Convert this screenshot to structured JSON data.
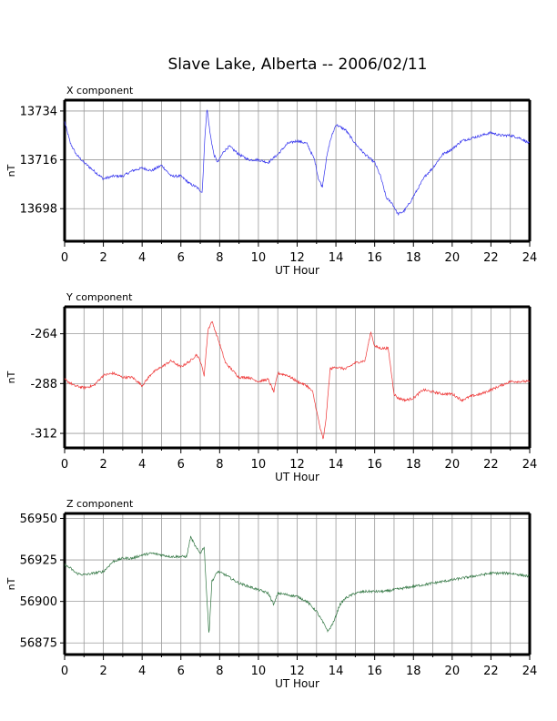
{
  "title": "Slave Lake, Alberta -- 2006/02/11",
  "chart_data": [
    {
      "type": "line",
      "title": "X component",
      "xlabel": "UT Hour",
      "ylabel": "nT",
      "xlim": [
        0,
        24
      ],
      "ylim": [
        13686,
        13738
      ],
      "xticks": [
        0,
        2,
        4,
        6,
        8,
        10,
        12,
        14,
        16,
        18,
        20,
        22,
        24
      ],
      "yticks": [
        13698,
        13716,
        13734
      ],
      "grid": true,
      "color": "#3333ee",
      "series": [
        {
          "x": [
            0,
            0.3,
            0.6,
            1.0,
            1.5,
            2.0,
            2.5,
            3.0,
            3.5,
            4.0,
            4.5,
            5.0,
            5.5,
            6.0,
            6.5,
            6.8,
            7.1,
            7.25,
            7.35,
            7.5,
            7.7,
            7.9,
            8.2,
            8.5,
            9.0,
            9.5,
            10.0,
            10.5,
            11.0,
            11.5,
            12.0,
            12.5,
            12.9,
            13.1,
            13.3,
            13.5,
            13.7,
            14.0,
            14.5,
            15.0,
            15.5,
            16.0,
            16.3,
            16.6,
            16.9,
            17.2,
            17.5,
            17.8,
            18.2,
            18.6,
            19.0,
            19.5,
            20.0,
            20.5,
            21.0,
            21.5,
            22.0,
            22.5,
            23.0,
            23.5,
            24.0
          ],
          "y": [
            13730,
            13722,
            13718,
            13715,
            13712,
            13709,
            13710,
            13710,
            13712,
            13713,
            13712,
            13714,
            13710,
            13710,
            13707,
            13706,
            13704,
            13726,
            13735,
            13726,
            13718,
            13715,
            13719,
            13721,
            13718,
            13716,
            13716,
            13715,
            13718,
            13722,
            13723,
            13722,
            13716,
            13709,
            13706,
            13716,
            13723,
            13729,
            13727,
            13722,
            13718,
            13715,
            13710,
            13702,
            13700,
            13696,
            13697,
            13700,
            13705,
            13710,
            13713,
            13718,
            13720,
            13723,
            13724,
            13725,
            13726,
            13725,
            13725,
            13724,
            13722
          ]
        }
      ]
    },
    {
      "type": "line",
      "title": "Y component",
      "xlabel": "UT Hour",
      "ylabel": "nT",
      "xlim": [
        0,
        24
      ],
      "ylim": [
        -319,
        -251
      ],
      "xticks": [
        0,
        2,
        4,
        6,
        8,
        10,
        12,
        14,
        16,
        18,
        20,
        22,
        24
      ],
      "yticks": [
        -264,
        -288,
        -312
      ],
      "grid": true,
      "color": "#ee3333",
      "series": [
        {
          "x": [
            0,
            0.5,
            1.0,
            1.5,
            2.0,
            2.5,
            3.0,
            3.5,
            4.0,
            4.5,
            5.0,
            5.5,
            6.0,
            6.5,
            6.8,
            7.0,
            7.2,
            7.4,
            7.6,
            7.9,
            8.3,
            8.7,
            9.0,
            9.5,
            10.0,
            10.5,
            10.8,
            11.0,
            11.5,
            12.0,
            12.5,
            12.8,
            13.0,
            13.2,
            13.35,
            13.5,
            13.7,
            14.0,
            14.5,
            15.0,
            15.5,
            15.8,
            16.0,
            16.3,
            16.7,
            17.0,
            17.2,
            17.6,
            18.0,
            18.5,
            19.0,
            19.5,
            20.0,
            20.5,
            21.0,
            21.5,
            22.0,
            22.5,
            23.0,
            23.5,
            24.0
          ],
          "y": [
            -286,
            -289,
            -290,
            -289,
            -284,
            -283,
            -285,
            -285,
            -289,
            -283,
            -280,
            -277,
            -280,
            -277,
            -274,
            -277,
            -284,
            -262,
            -258,
            -266,
            -278,
            -282,
            -285,
            -285,
            -287,
            -286,
            -292,
            -283,
            -284,
            -287,
            -289,
            -292,
            -301,
            -310,
            -315,
            -304,
            -281,
            -280,
            -281,
            -278,
            -277,
            -263,
            -270,
            -271,
            -271,
            -293,
            -295,
            -296,
            -295,
            -291,
            -292,
            -293,
            -293,
            -296,
            -294,
            -293,
            -291,
            -289,
            -287,
            -287,
            -287
          ]
        }
      ]
    },
    {
      "type": "line",
      "title": "Z component",
      "xlabel": "UT Hour",
      "ylabel": "nT",
      "xlim": [
        0,
        24
      ],
      "ylim": [
        56868,
        56953
      ],
      "xticks": [
        0,
        2,
        4,
        6,
        8,
        10,
        12,
        14,
        16,
        18,
        20,
        22,
        24
      ],
      "yticks": [
        56875,
        56900,
        56925,
        56950
      ],
      "grid": true,
      "color": "#337744",
      "series": [
        {
          "x": [
            0,
            0.3,
            0.6,
            1.0,
            1.5,
            2.0,
            2.5,
            3.0,
            3.5,
            4.0,
            4.5,
            5.0,
            5.5,
            6.0,
            6.3,
            6.5,
            6.8,
            7.0,
            7.2,
            7.35,
            7.45,
            7.6,
            7.9,
            8.3,
            8.7,
            9.0,
            9.5,
            10.0,
            10.5,
            10.8,
            11.0,
            11.5,
            12.0,
            12.5,
            13.0,
            13.3,
            13.6,
            13.9,
            14.2,
            14.5,
            15.0,
            15.5,
            16.0,
            16.5,
            17.0,
            17.5,
            18.0,
            18.5,
            19.0,
            19.5,
            20.0,
            20.5,
            21.0,
            21.5,
            22.0,
            22.5,
            23.0,
            23.5,
            24.0
          ],
          "y": [
            56922,
            56920,
            56917,
            56916,
            56917,
            56918,
            56924,
            56926,
            56926,
            56928,
            56929,
            56928,
            56927,
            56927,
            56927,
            56939,
            56932,
            56929,
            56933,
            56900,
            56880,
            56912,
            56918,
            56916,
            56913,
            56911,
            56909,
            56907,
            56905,
            56898,
            56905,
            56904,
            56903,
            56900,
            56894,
            56888,
            56882,
            56888,
            56898,
            56902,
            56905,
            56906,
            56906,
            56906,
            56907,
            56908,
            56909,
            56910,
            56911,
            56912,
            56913,
            56914,
            56915,
            56916,
            56917,
            56917,
            56917,
            56916,
            56915
          ]
        }
      ]
    }
  ]
}
